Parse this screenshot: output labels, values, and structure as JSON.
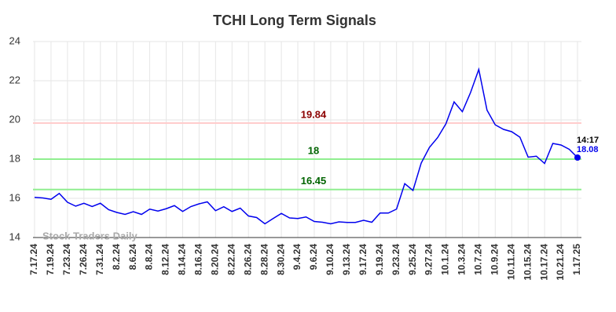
{
  "chart_data": {
    "type": "line",
    "title": "TCHI Long Term Signals",
    "watermark": "Stock Traders Daily",
    "categories": [
      "7.17.24",
      null,
      "7.19.24",
      null,
      "7.23.24",
      null,
      "7.26.24",
      null,
      "7.31.24",
      null,
      "8.2.24",
      null,
      "8.6.24",
      null,
      "8.8.24",
      null,
      "8.12.24",
      null,
      "8.14.24",
      null,
      "8.16.24",
      null,
      "8.20.24",
      null,
      "8.22.24",
      null,
      "8.26.24",
      null,
      "8.28.24",
      null,
      "8.30.24",
      null,
      "9.4.24",
      null,
      "9.6.24",
      null,
      "9.10.24",
      null,
      "9.13.24",
      null,
      "9.17.24",
      null,
      "9.19.24",
      null,
      "9.23.24",
      null,
      "9.25.24",
      null,
      "9.27.24",
      null,
      "10.1.24",
      null,
      "10.3.24",
      null,
      "10.7.24",
      null,
      "10.9.24",
      null,
      "10.11.24",
      null,
      "10.15.24",
      null,
      "10.17.24",
      null,
      "10.21.24",
      null,
      "1.17.25"
    ],
    "series": [
      {
        "name": "TCHI",
        "color": "#0000ee",
        "values": [
          16.05,
          16.02,
          15.95,
          16.25,
          15.8,
          15.6,
          15.75,
          15.58,
          15.75,
          15.42,
          15.28,
          15.18,
          15.32,
          15.18,
          15.45,
          15.35,
          15.47,
          15.63,
          15.33,
          15.58,
          15.72,
          15.82,
          15.37,
          15.57,
          15.33,
          15.5,
          15.1,
          15.02,
          14.7,
          14.97,
          15.23,
          15.0,
          14.97,
          15.05,
          14.82,
          14.78,
          14.7,
          14.8,
          14.77,
          14.77,
          14.88,
          14.78,
          15.25,
          15.25,
          15.45,
          16.75,
          16.4,
          17.8,
          18.6,
          19.1,
          19.8,
          20.92,
          20.42,
          21.4,
          22.58,
          20.5,
          19.75,
          19.52,
          19.4,
          19.12,
          18.1,
          18.15,
          17.78,
          18.8,
          18.72,
          18.5,
          18.08
        ]
      }
    ],
    "hlines": [
      {
        "value": 19.84,
        "color": "#ffcccc",
        "label_color": "#8b0000"
      },
      {
        "value": 18,
        "color": "#90ee90",
        "label_color": "#006400"
      },
      {
        "value": 16.45,
        "color": "#90ee90",
        "label_color": "#006400"
      }
    ],
    "last_point": {
      "time": "14:17",
      "value": 18.08
    },
    "ylim": [
      14,
      24
    ],
    "yticks": [
      14,
      16,
      18,
      20,
      22,
      24
    ],
    "grid": true
  }
}
